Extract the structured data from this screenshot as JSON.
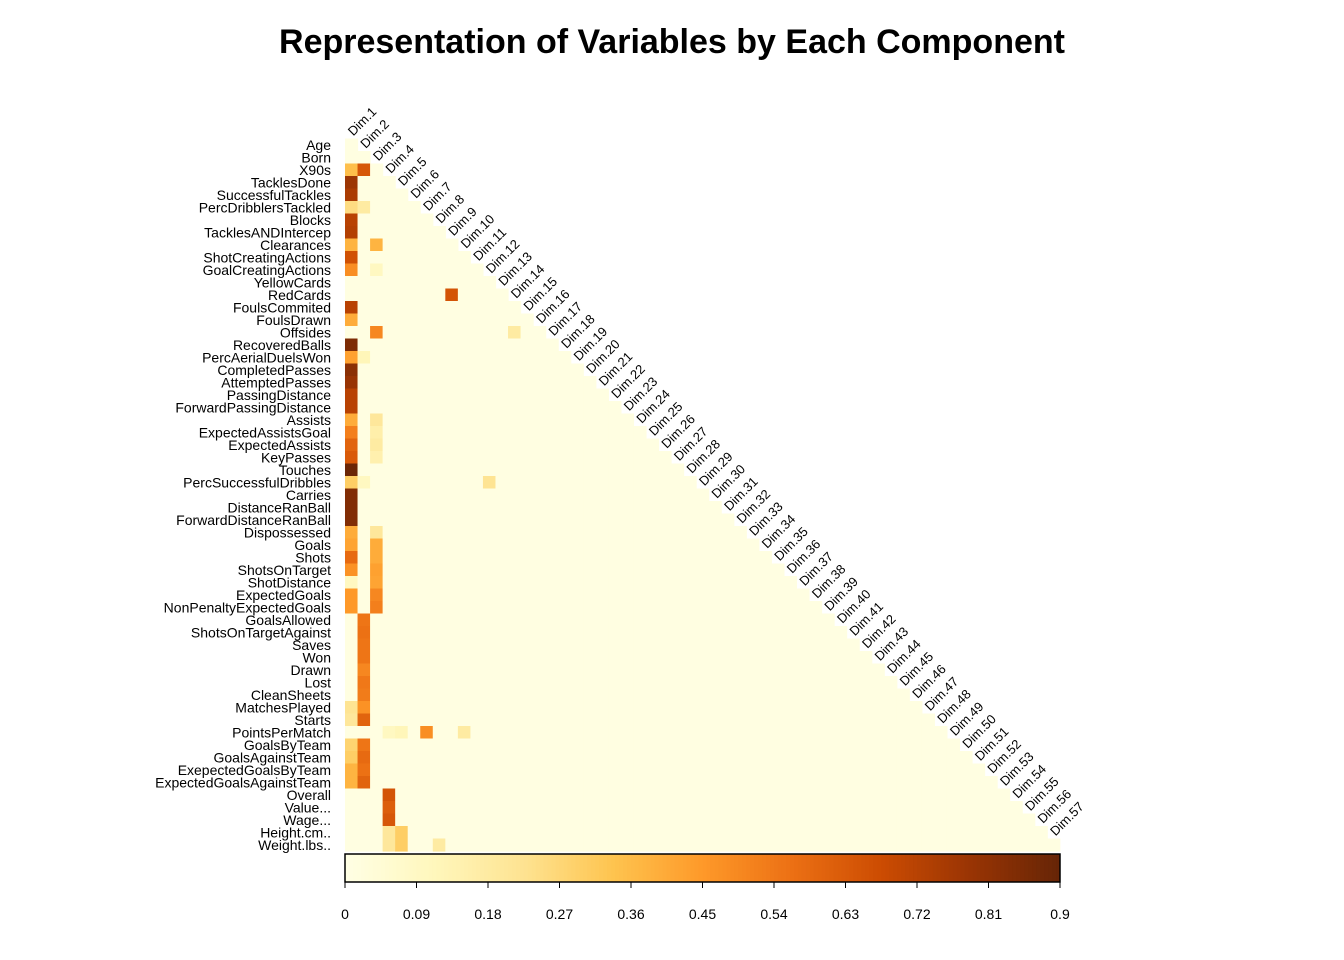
{
  "chart_data": {
    "type": "heatmap",
    "title": "Representation of Variables by Each Component",
    "layout": "lower-triangle",
    "row_labels": [
      "Age",
      "Born",
      "X90s",
      "TacklesDone",
      "SuccessfulTackles",
      "PercDribblersTackled",
      "Blocks",
      "TacklesANDIntercep",
      "Clearances",
      "ShotCreatingActions",
      "GoalCreatingActions",
      "YellowCards",
      "RedCards",
      "FoulsCommited",
      "FoulsDrawn",
      "Offsides",
      "RecoveredBalls",
      "PercAerialDuelsWon",
      "CompletedPasses",
      "AttemptedPasses",
      "PassingDistance",
      "ForwardPassingDistance",
      "Assists",
      "ExpectedAssistsGoal",
      "ExpectedAssists",
      "KeyPasses",
      "Touches",
      "PercSuccessfulDribbles",
      "Carries",
      "DistanceRanBall",
      "ForwardDistanceRanBall",
      "Dispossessed",
      "Goals",
      "Shots",
      "ShotsOnTarget",
      "ShotDistance",
      "ExpectedGoals",
      "NonPenaltyExpectedGoals",
      "GoalsAllowed",
      "ShotsOnTargetAgainst",
      "Saves",
      "Won",
      "Drawn",
      "Lost",
      "CleanSheets",
      "MatchesPlayed",
      "Starts",
      "PointsPerMatch",
      "GoalsByTeam",
      "GoalsAgainstTeam",
      "ExepectedGoalsByTeam",
      "ExpectedGoalsAgainstTeam",
      "Overall",
      "Value...",
      "Wage...",
      "Height.cm..",
      "Weight.lbs.."
    ],
    "col_labels": [
      "Dim.1",
      "Dim.2",
      "Dim.3",
      "Dim.4",
      "Dim.5",
      "Dim.6",
      "Dim.7",
      "Dim.8",
      "Dim.9",
      "Dim.10",
      "Dim.11",
      "Dim.12",
      "Dim.13",
      "Dim.14",
      "Dim.15",
      "Dim.16",
      "Dim.17",
      "Dim.18",
      "Dim.19",
      "Dim.20",
      "Dim.21",
      "Dim.22",
      "Dim.23",
      "Dim.24",
      "Dim.25",
      "Dim.26",
      "Dim.27",
      "Dim.28",
      "Dim.29",
      "Dim.30",
      "Dim.31",
      "Dim.32",
      "Dim.33",
      "Dim.34",
      "Dim.35",
      "Dim.36",
      "Dim.37",
      "Dim.38",
      "Dim.39",
      "Dim.40",
      "Dim.41",
      "Dim.42",
      "Dim.43",
      "Dim.44",
      "Dim.45",
      "Dim.46",
      "Dim.47",
      "Dim.48",
      "Dim.49",
      "Dim.50",
      "Dim.51",
      "Dim.52",
      "Dim.53",
      "Dim.54",
      "Dim.55",
      "Dim.56",
      "Dim.57"
    ],
    "strong_values": [
      [
        2,
        0,
        0.35
      ],
      [
        2,
        1,
        0.64
      ],
      [
        3,
        0,
        0.78
      ],
      [
        4,
        0,
        0.75
      ],
      [
        5,
        0,
        0.25
      ],
      [
        5,
        1,
        0.18
      ],
      [
        6,
        0,
        0.72
      ],
      [
        7,
        0,
        0.73
      ],
      [
        8,
        0,
        0.38
      ],
      [
        8,
        2,
        0.38
      ],
      [
        9,
        0,
        0.66
      ],
      [
        10,
        0,
        0.48
      ],
      [
        10,
        2,
        0.1
      ],
      [
        12,
        8,
        0.65
      ],
      [
        13,
        0,
        0.72
      ],
      [
        14,
        0,
        0.4
      ],
      [
        15,
        2,
        0.5
      ],
      [
        15,
        13,
        0.18
      ],
      [
        16,
        0,
        0.85
      ],
      [
        17,
        0,
        0.43
      ],
      [
        17,
        1,
        0.12
      ],
      [
        18,
        0,
        0.82
      ],
      [
        19,
        0,
        0.79
      ],
      [
        20,
        0,
        0.72
      ],
      [
        21,
        0,
        0.72
      ],
      [
        22,
        0,
        0.4
      ],
      [
        22,
        2,
        0.2
      ],
      [
        23,
        0,
        0.52
      ],
      [
        23,
        2,
        0.16
      ],
      [
        24,
        0,
        0.6
      ],
      [
        24,
        2,
        0.18
      ],
      [
        25,
        0,
        0.63
      ],
      [
        25,
        2,
        0.15
      ],
      [
        26,
        0,
        0.89
      ],
      [
        27,
        0,
        0.3
      ],
      [
        27,
        1,
        0.1
      ],
      [
        27,
        11,
        0.22
      ],
      [
        28,
        0,
        0.84
      ],
      [
        29,
        0,
        0.84
      ],
      [
        30,
        0,
        0.84
      ],
      [
        31,
        0,
        0.4
      ],
      [
        31,
        2,
        0.2
      ],
      [
        32,
        0,
        0.42
      ],
      [
        32,
        2,
        0.4
      ],
      [
        33,
        0,
        0.58
      ],
      [
        33,
        2,
        0.4
      ],
      [
        34,
        0,
        0.47
      ],
      [
        34,
        2,
        0.43
      ],
      [
        35,
        0,
        0.1
      ],
      [
        35,
        2,
        0.42
      ],
      [
        36,
        0,
        0.45
      ],
      [
        36,
        2,
        0.5
      ],
      [
        37,
        0,
        0.45
      ],
      [
        37,
        2,
        0.52
      ],
      [
        38,
        1,
        0.55
      ],
      [
        39,
        1,
        0.56
      ],
      [
        40,
        1,
        0.55
      ],
      [
        41,
        1,
        0.55
      ],
      [
        42,
        1,
        0.5
      ],
      [
        43,
        1,
        0.54
      ],
      [
        44,
        1,
        0.53
      ],
      [
        45,
        0,
        0.22
      ],
      [
        45,
        1,
        0.47
      ],
      [
        46,
        0,
        0.2
      ],
      [
        46,
        1,
        0.6
      ],
      [
        47,
        6,
        0.48
      ],
      [
        47,
        9,
        0.18
      ],
      [
        47,
        3,
        0.1
      ],
      [
        47,
        4,
        0.12
      ],
      [
        48,
        0,
        0.28
      ],
      [
        48,
        1,
        0.55
      ],
      [
        49,
        0,
        0.3
      ],
      [
        49,
        1,
        0.58
      ],
      [
        50,
        0,
        0.38
      ],
      [
        50,
        1,
        0.56
      ],
      [
        51,
        0,
        0.38
      ],
      [
        51,
        1,
        0.6
      ],
      [
        52,
        3,
        0.65
      ],
      [
        53,
        3,
        0.62
      ],
      [
        54,
        3,
        0.64
      ],
      [
        55,
        3,
        0.2
      ],
      [
        55,
        4,
        0.3
      ],
      [
        56,
        3,
        0.2
      ],
      [
        56,
        4,
        0.3
      ],
      [
        56,
        7,
        0.18
      ]
    ],
    "colorbar": {
      "min": 0,
      "max": 0.9,
      "ticks": [
        "0",
        "0.09",
        "0.18",
        "0.27",
        "0.36",
        "0.45",
        "0.54",
        "0.63",
        "0.72",
        "0.81",
        "0.9"
      ],
      "colors": [
        "#FFFFE5",
        "#FFF7BC",
        "#FEE391",
        "#FEC44F",
        "#FE9929",
        "#EC7014",
        "#CC4C02",
        "#993404",
        "#662506"
      ]
    }
  }
}
